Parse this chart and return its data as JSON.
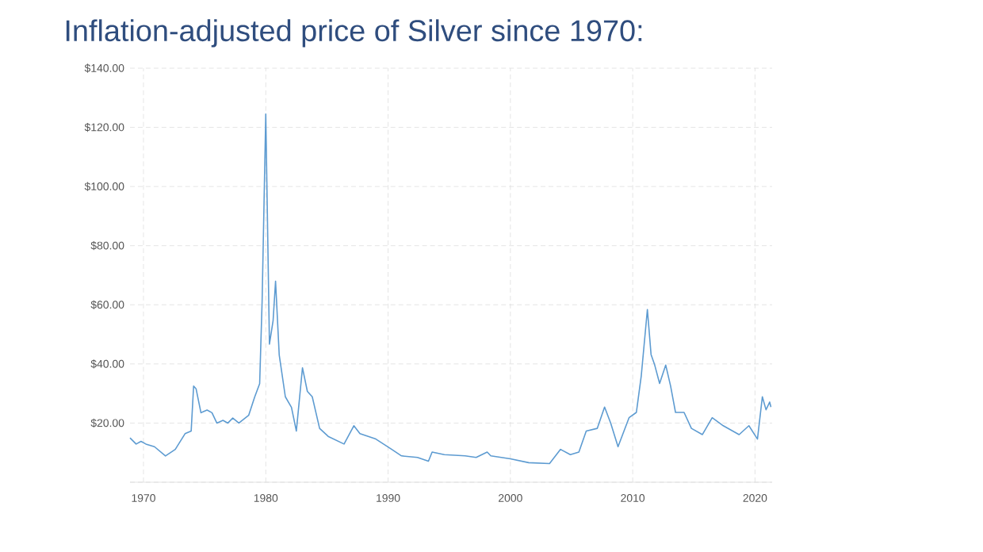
{
  "chart_data": {
    "type": "line",
    "title": "Inflation-adjusted price of Silver since 1970:",
    "x": [
      1968.9,
      1969.4,
      1969.8,
      1970.2,
      1970.9,
      1971.8,
      1972.6,
      1973.4,
      1973.9,
      1974.1,
      1974.3,
      1974.7,
      1975.2,
      1975.6,
      1976.0,
      1976.5,
      1976.9,
      1977.3,
      1977.8,
      1978.6,
      1979.1,
      1979.5,
      1979.7,
      1980.0,
      1980.3,
      1980.6,
      1980.8,
      1981.1,
      1981.6,
      1982.1,
      1982.5,
      1983.0,
      1983.4,
      1983.8,
      1984.4,
      1985.1,
      1986.4,
      1987.2,
      1987.7,
      1989.0,
      1990.3,
      1991.1,
      1992.4,
      1993.3,
      1993.6,
      1994.6,
      1996.3,
      1997.2,
      1998.1,
      1998.4,
      2000.0,
      2001.5,
      2003.2,
      2004.1,
      2004.9,
      2005.6,
      2006.2,
      2007.1,
      2007.7,
      2008.2,
      2008.8,
      2009.7,
      2010.3,
      2010.7,
      2011.2,
      2011.5,
      2011.8,
      2012.2,
      2012.7,
      2013.1,
      2013.5,
      2014.2,
      2014.8,
      2015.7,
      2016.5,
      2017.4,
      2018.7,
      2019.5,
      2020.2,
      2020.6,
      2020.9,
      2021.2,
      2021.3
    ],
    "series": [
      {
        "color": "#5d9bd1",
        "values": [
          15.0,
          12.9,
          13.8,
          12.9,
          12.0,
          8.9,
          11.1,
          16.4,
          17.3,
          32.5,
          31.6,
          23.5,
          24.4,
          23.5,
          20.0,
          20.9,
          20.0,
          21.7,
          20.0,
          22.6,
          28.9,
          33.3,
          61,
          124.5,
          46.7,
          54.7,
          68,
          43,
          28.9,
          25.3,
          17.3,
          38.7,
          30.7,
          28.9,
          18.2,
          15.5,
          12.9,
          19.1,
          16.4,
          14.6,
          11.1,
          8.9,
          8.4,
          7.1,
          10.2,
          9.3,
          8.9,
          8.4,
          10.2,
          8.9,
          7.9,
          6.6,
          6.3,
          11.1,
          9.3,
          10.2,
          17.3,
          18.2,
          25.4,
          20,
          12.0,
          21.8,
          23.6,
          36,
          58.4,
          43.2,
          39.6,
          33.4,
          39.6,
          32.5,
          23.6,
          23.6,
          18.2,
          16.1,
          21.8,
          19.1,
          16.1,
          19.1,
          14.6,
          28.9,
          24.5,
          27.1,
          25.4
        ]
      }
    ],
    "xlim": [
      1968.9,
      2021.4
    ],
    "ylim": [
      0,
      140
    ],
    "xticks": [
      1970,
      1980,
      1990,
      2000,
      2010,
      2020
    ],
    "yticks": [
      {
        "value": 0,
        "label": null
      },
      {
        "value": 20,
        "label": "$20.00"
      },
      {
        "value": 40,
        "label": "$40.00"
      },
      {
        "value": 60,
        "label": "$60.00"
      },
      {
        "value": 80,
        "label": "$80.00"
      },
      {
        "value": 100,
        "label": "$100.00"
      },
      {
        "value": 120,
        "label": "$120.00"
      },
      {
        "value": 140,
        "label": "$140.00"
      }
    ],
    "grid": true
  }
}
